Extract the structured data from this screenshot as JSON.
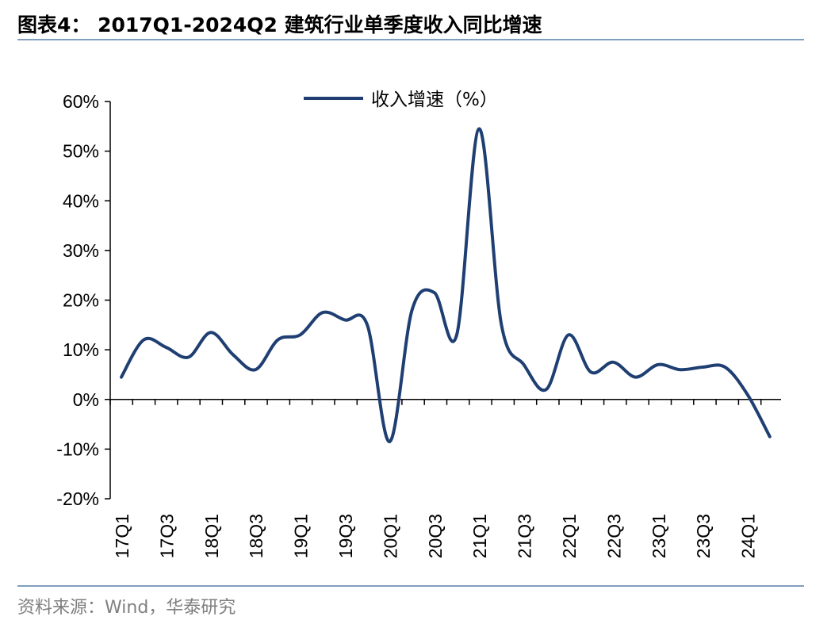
{
  "header": {
    "title": "图表4：  2017Q1-2024Q2 建筑行业单季度收入同比增速"
  },
  "footer": {
    "source": "资料来源：Wind，华泰研究"
  },
  "colors": {
    "series_line": "#1f3f73",
    "rule": "#7f9fbf",
    "source_text": "#7f7f7f"
  },
  "chart_data": {
    "type": "line",
    "title": "",
    "xlabel": "",
    "ylabel": "",
    "ylim": [
      -20,
      60
    ],
    "yticks": [
      -20,
      -10,
      0,
      10,
      20,
      30,
      40,
      50,
      60
    ],
    "ytick_labels": [
      "-20%",
      "-10%",
      "0%",
      "10%",
      "20%",
      "30%",
      "40%",
      "50%",
      "60%"
    ],
    "grid": false,
    "legend_position": "top-center",
    "x": [
      "17Q1",
      "17Q2",
      "17Q3",
      "17Q4",
      "18Q1",
      "18Q2",
      "18Q3",
      "18Q4",
      "19Q1",
      "19Q2",
      "19Q3",
      "19Q4",
      "20Q1",
      "20Q2",
      "20Q3",
      "20Q4",
      "21Q1",
      "21Q2",
      "21Q3",
      "21Q4",
      "22Q1",
      "22Q2",
      "22Q3",
      "22Q4",
      "23Q1",
      "23Q2",
      "23Q3",
      "23Q4",
      "24Q1",
      "24Q2"
    ],
    "xtick_labels": [
      "17Q1",
      "",
      "17Q3",
      "",
      "18Q1",
      "",
      "18Q3",
      "",
      "19Q1",
      "",
      "19Q3",
      "",
      "20Q1",
      "",
      "20Q3",
      "",
      "21Q1",
      "",
      "21Q3",
      "",
      "22Q1",
      "",
      "22Q3",
      "",
      "23Q1",
      "",
      "23Q3",
      "",
      "24Q1",
      ""
    ],
    "series": [
      {
        "name": "收入增速（%）",
        "values": [
          4.5,
          12.0,
          10.5,
          8.5,
          13.5,
          9.0,
          6.0,
          12.0,
          13.0,
          17.5,
          16.0,
          15.0,
          -8.5,
          18.0,
          21.5,
          13.0,
          54.5,
          15.0,
          7.0,
          2.0,
          13.0,
          5.5,
          7.5,
          4.5,
          7.0,
          6.0,
          6.5,
          6.5,
          1.0,
          -7.5
        ]
      }
    ]
  }
}
